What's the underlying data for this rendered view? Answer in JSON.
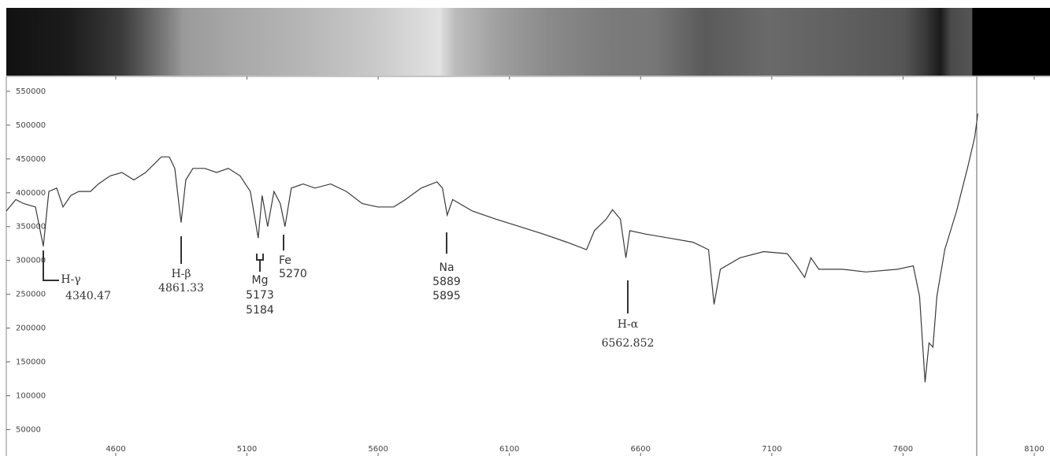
{
  "chart_data": {
    "type": "line",
    "color": "#3a3a3a",
    "x": [
      4183,
      4219,
      4249,
      4294,
      4324,
      4345,
      4375,
      4399,
      4429,
      4459,
      4504,
      4534,
      4579,
      4624,
      4669,
      4714,
      4774,
      4804,
      4825,
      4849,
      4867,
      4894,
      4939,
      4984,
      5029,
      5074,
      5113,
      5143,
      5158,
      5179,
      5203,
      5227,
      5245,
      5269,
      5314,
      5359,
      5419,
      5479,
      5539,
      5599,
      5659,
      5704,
      5764,
      5824,
      5845,
      5863,
      5884,
      5959,
      6049,
      6139,
      6229,
      6319,
      6394,
      6424,
      6469,
      6493,
      6523,
      6544,
      6559,
      6619,
      6709,
      6799,
      6859,
      6880,
      6904,
      6979,
      7069,
      7159,
      7195,
      7225,
      7249,
      7279,
      7369,
      7459,
      7579,
      7639,
      7663,
      7684,
      7699,
      7714,
      7729,
      7759,
      7804,
      7849,
      7873,
      7885
    ],
    "values": [
      373000,
      390000,
      384000,
      379000,
      321000,
      402000,
      407000,
      379000,
      396000,
      402000,
      402000,
      413000,
      425000,
      430000,
      419000,
      430000,
      453000,
      453000,
      436000,
      356000,
      419000,
      436000,
      436000,
      430000,
      436000,
      425000,
      402000,
      333000,
      396000,
      350000,
      402000,
      384000,
      350000,
      407000,
      413000,
      407000,
      413000,
      402000,
      384000,
      379000,
      379000,
      390000,
      407000,
      416000,
      407000,
      367000,
      390000,
      373000,
      361000,
      350000,
      339000,
      327000,
      316000,
      344000,
      361000,
      375000,
      361000,
      304000,
      344000,
      339000,
      333000,
      327000,
      316000,
      235000,
      287000,
      304000,
      313000,
      310000,
      292000,
      275000,
      304000,
      287000,
      287000,
      283000,
      287000,
      292000,
      247000,
      120000,
      178000,
      172000,
      247000,
      316000,
      373000,
      442000,
      482000,
      517000
    ],
    "xlim": [
      4183,
      8136
    ],
    "ylim": [
      11000,
      572000
    ],
    "xticks": [
      4600,
      5100,
      5600,
      6100,
      6600,
      7100,
      7600,
      8100
    ],
    "yticks": [
      50000,
      100000,
      150000,
      200000,
      250000,
      300000,
      350000,
      400000,
      450000,
      500000,
      550000
    ],
    "annotations": [
      {
        "name": "H-γ",
        "wavelengths": [
          "4340.47"
        ]
      },
      {
        "name": "H-β",
        "wavelengths": [
          "4861.33"
        ]
      },
      {
        "name": "Mg",
        "wavelengths": [
          "5173",
          "5184"
        ]
      },
      {
        "name": "Fe",
        "wavelengths": [
          "5270"
        ]
      },
      {
        "name": "Na",
        "wavelengths": [
          "5889",
          "5895"
        ]
      },
      {
        "name": "H-α",
        "wavelengths": [
          "6562.852"
        ]
      }
    ]
  }
}
